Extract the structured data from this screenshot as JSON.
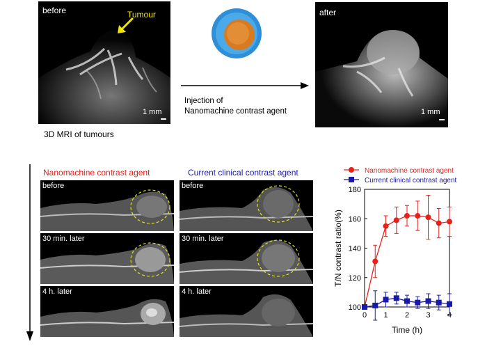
{
  "top": {
    "before_label": "before",
    "after_label": "after",
    "tumour_label": "Tumour",
    "scale_before": "1 mm",
    "scale_after": "1 mm",
    "injection_line1": "Injection of",
    "injection_line2": "Nanomachine contrast agent",
    "caption": "3D MRI of tumours"
  },
  "grid": {
    "col_nano": "Nanomachine contrast agent",
    "col_clinical": "Current clinical contrast agent",
    "rows": [
      "before",
      "30 min. later",
      "4 h. later"
    ]
  },
  "colors": {
    "nano": "#e8201a",
    "clinical": "#1a1aa8",
    "tumour_arrow": "#f2e600",
    "dashed_outline": "#e0e020"
  },
  "chart_data": {
    "type": "line",
    "xlabel": "Time (h)",
    "ylabel": "T/N contrast ratio(%)",
    "xlim": [
      0,
      4
    ],
    "ylim": [
      100,
      180
    ],
    "xticks": [
      "0",
      "1",
      "2",
      "3",
      "4"
    ],
    "yticks": [
      "100",
      "120",
      "140",
      "160",
      "180"
    ],
    "legend": "top-left, above plot",
    "series": [
      {
        "name": "Nanomachine contrast agent",
        "color": "#e8201a",
        "marker": "circle",
        "x": [
          0,
          0.5,
          1,
          1.5,
          2,
          2.5,
          3,
          3.5,
          4
        ],
        "y": [
          100,
          131,
          155,
          159,
          162,
          162,
          161,
          157,
          158
        ],
        "err": [
          0,
          11,
          7,
          9,
          7,
          10,
          15,
          10,
          10
        ]
      },
      {
        "name": "Current clinical contrast agent",
        "color": "#1a1aa8",
        "marker": "square",
        "x": [
          0,
          0.5,
          1,
          1.5,
          2,
          2.5,
          3,
          3.5,
          4
        ],
        "y": [
          100,
          101,
          105,
          106,
          104,
          103,
          104,
          103,
          102
        ],
        "err": [
          0,
          10,
          5,
          4,
          4,
          4,
          5,
          5,
          7
        ]
      }
    ]
  }
}
